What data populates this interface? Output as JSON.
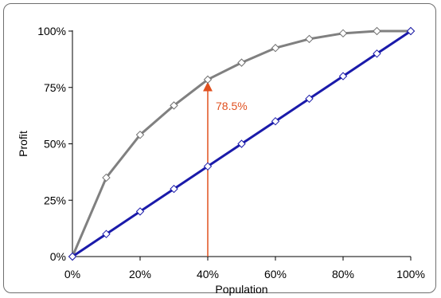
{
  "chart_data": {
    "type": "line",
    "title": "",
    "xlabel": "Population",
    "ylabel": "Profit",
    "xlim": [
      0,
      100
    ],
    "ylim": [
      0,
      100
    ],
    "grid": false,
    "legend": "none",
    "x_tick_labels": [
      "0%",
      "20%",
      "40%",
      "60%",
      "80%",
      "100%"
    ],
    "x_tick_values": [
      0,
      20,
      40,
      60,
      80,
      100
    ],
    "y_tick_labels": [
      "0%",
      "25%",
      "50%",
      "75%",
      "100%"
    ],
    "y_tick_values": [
      0,
      25,
      50,
      75,
      100
    ],
    "series": [
      {
        "color": "#808080",
        "marker": "diamond",
        "x": [
          0,
          10,
          20,
          30,
          40,
          50,
          60,
          70,
          80,
          90,
          100
        ],
        "values": [
          0,
          35,
          54,
          67,
          78.5,
          86,
          92.5,
          96.5,
          99,
          100,
          100
        ]
      },
      {
        "color": "#1a1aaa",
        "marker": "diamond",
        "x": [
          0,
          10,
          20,
          30,
          40,
          50,
          60,
          70,
          80,
          90,
          100
        ],
        "values": [
          0,
          10,
          20,
          30,
          40,
          50,
          60,
          70,
          80,
          90,
          100
        ]
      }
    ],
    "annotations": [
      {
        "type": "arrow",
        "x": 40,
        "from_y": 0,
        "to_y": 78.5,
        "label": "78.5%",
        "color": "#e0501f"
      }
    ]
  }
}
